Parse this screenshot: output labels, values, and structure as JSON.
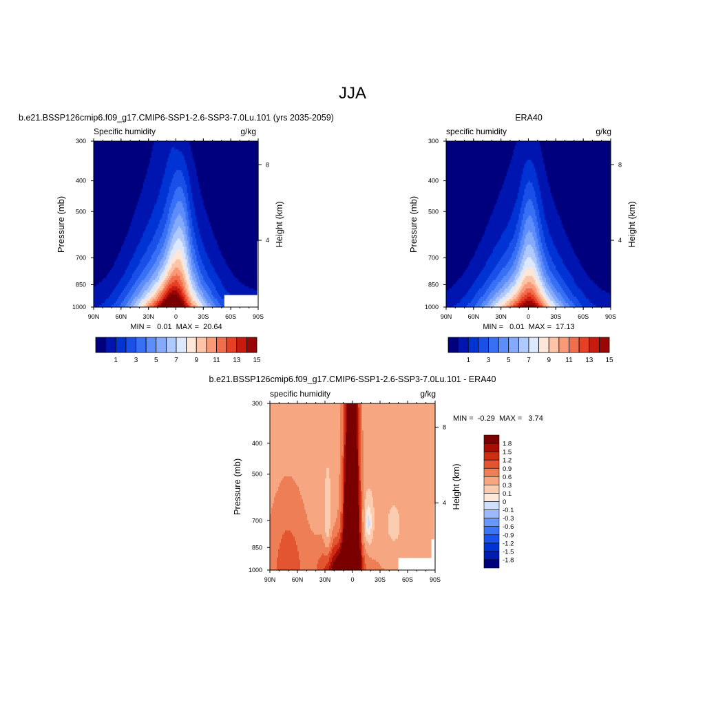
{
  "page_title": "JJA",
  "colors": {
    "seq_levels": [
      "#00007f",
      "#0015b0",
      "#0033d4",
      "#1a4fe8",
      "#3870f5",
      "#5d8dfa",
      "#85aafc",
      "#b0c9fd",
      "#dce8fe",
      "#fee6d8",
      "#fcc4a6",
      "#f89a78",
      "#f26d4c",
      "#e64124",
      "#c81a0d",
      "#9a0505",
      "#7a0000"
    ],
    "diff_levels": [
      "#00007f",
      "#001cb0",
      "#0033d4",
      "#1a52ec",
      "#3c74f7",
      "#6a97fb",
      "#9bbafd",
      "#cfdffe",
      "#fde9dc",
      "#fbcdb0",
      "#f6a781",
      "#ee7e55",
      "#e35530",
      "#cd2e12",
      "#a80c04",
      "#7a0000"
    ]
  },
  "chart_data": [
    {
      "type": "contour",
      "title": "b.e21.BSSP126cmip6.f09_g17.CMIP6-SSP1-2.6-SSP3-7.0Lu.101 (yrs 2035-2059)",
      "left_label": "Specific humidity",
      "right_label": "g/kg",
      "ylabel": "Pressure (mb)",
      "ylabel_right": "Height (km)",
      "x_ticks": [
        "90N",
        "60N",
        "30N",
        "0",
        "30S",
        "60S",
        "90S"
      ],
      "y_ticks": [
        "300",
        "400",
        "500",
        "700",
        "850",
        "1000"
      ],
      "y_ticks_right": [
        "8",
        "4"
      ],
      "min_max": "MIN =   0.01  MAX =  20.64",
      "colorbar_labels": [
        "1",
        "3",
        "5",
        "7",
        "9",
        "11",
        "13",
        "15"
      ],
      "levels": [
        1,
        2,
        3,
        4,
        5,
        6,
        7,
        8,
        9,
        10,
        11,
        12,
        13,
        14,
        15,
        16
      ],
      "ylim": [
        1000,
        300
      ]
    },
    {
      "type": "contour",
      "title": "ERA40",
      "left_label": "specific humidity",
      "right_label": "g/kg",
      "ylabel": "Pressure (mb)",
      "ylabel_right": "Height (km)",
      "x_ticks": [
        "90N",
        "60N",
        "30N",
        "0",
        "30S",
        "60S",
        "90S"
      ],
      "y_ticks": [
        "300",
        "400",
        "500",
        "700",
        "850",
        "1000"
      ],
      "y_ticks_right": [
        "8",
        "4"
      ],
      "min_max": "MIN =   0.01  MAX =  17.13",
      "colorbar_labels": [
        "1",
        "3",
        "5",
        "7",
        "9",
        "11",
        "13",
        "15"
      ],
      "levels": [
        1,
        2,
        3,
        4,
        5,
        6,
        7,
        8,
        9,
        10,
        11,
        12,
        13,
        14,
        15,
        16
      ],
      "ylim": [
        1000,
        300
      ]
    },
    {
      "type": "contour",
      "title": "b.e21.BSSP126cmip6.f09_g17.CMIP6-SSP1-2.6-SSP3-7.0Lu.101 - ERA40",
      "left_label": "specific humidity",
      "right_label": "g/kg",
      "ylabel": "Pressure (mb)",
      "ylabel_right": "Height (km)",
      "x_ticks": [
        "90N",
        "60N",
        "30N",
        "0",
        "30S",
        "60S",
        "90S"
      ],
      "y_ticks": [
        "300",
        "400",
        "500",
        "700",
        "850",
        "1000"
      ],
      "y_ticks_right": [
        "8",
        "4"
      ],
      "min_max": "MIN =  -0.29  MAX =   3.74",
      "colorbar_labels": [
        "1.8",
        "1.5",
        "1.2",
        "0.9",
        "0.6",
        "0.3",
        "0.1",
        "0",
        "-0.1",
        "-0.3",
        "-0.6",
        "-0.9",
        "-1.2",
        "-1.5",
        "-1.8"
      ],
      "levels": [
        -1.8,
        -1.5,
        -1.2,
        -0.9,
        -0.6,
        -0.3,
        -0.1,
        0,
        0.1,
        0.3,
        0.6,
        0.9,
        1.2,
        1.5,
        1.8
      ],
      "ylim": [
        1000,
        300
      ]
    }
  ]
}
